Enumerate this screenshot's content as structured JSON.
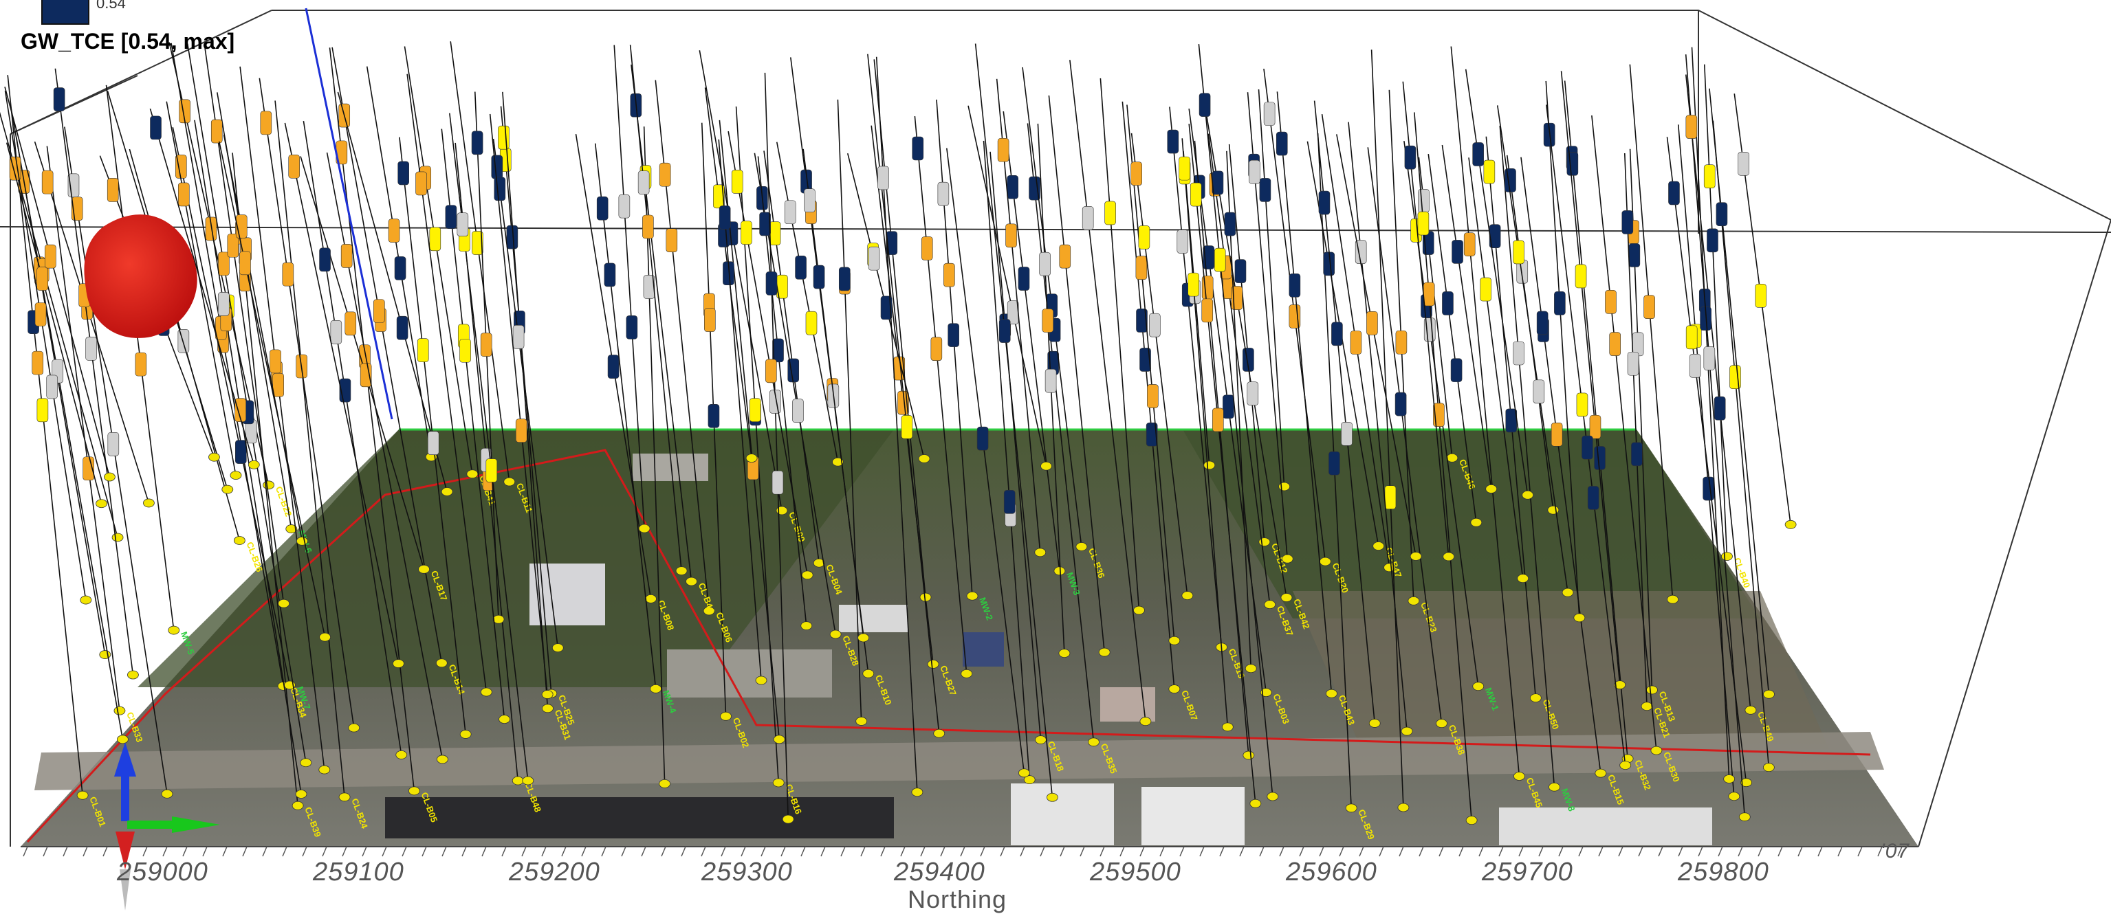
{
  "legend": {
    "title": "GW_TCE [0.54, max]",
    "swatch_value": "0.54",
    "swatch_color": "#0d2a5e"
  },
  "axis": {
    "title": "Northing",
    "ticks": [
      "259000",
      "259100",
      "259200",
      "259300",
      "259400",
      "259500",
      "259600",
      "259700",
      "259800"
    ],
    "truncated_end_label": "'07"
  },
  "colors": {
    "plume": "#d40f0f",
    "sample_high": "#f5a623",
    "sample_mid": "#fff200",
    "sample_low": "#0d2a5e",
    "sample_nd": "#d0d0d0",
    "well_marker": "#f2e400",
    "site_boundary": "#d31b1b",
    "ground_edge": "#2ecc40"
  },
  "well_labels": [
    "CL-B01",
    "CL-B02",
    "CL-B03",
    "CL-B04",
    "CL-B05",
    "CL-B06",
    "CL-B07",
    "CL-B08",
    "CL-B09",
    "CL-B10",
    "CL-B11",
    "CL-B12",
    "CL-B13",
    "CL-B14",
    "CL-B15",
    "CL-B16",
    "CL-B17",
    "CL-B18",
    "CL-B19",
    "CL-B20",
    "CL-B21",
    "CL-B22",
    "CL-B23",
    "CL-B24",
    "CL-B25",
    "CL-B26",
    "CL-B27",
    "CL-B28",
    "CL-B29",
    "CL-B30",
    "CL-B31",
    "CL-B32",
    "CL-B33",
    "CL-B34",
    "CL-B35",
    "CL-B36",
    "CL-B37",
    "CL-B38",
    "CL-B39",
    "CL-B40",
    "CL-B41",
    "CL-B42",
    "CL-B43",
    "CL-B44",
    "CL-B45",
    "CL-B46",
    "CL-B47",
    "CL-B48",
    "CL-B49",
    "CL-B50"
  ],
  "monitoring_labels": [
    "MW-1",
    "MW-2",
    "MW-3",
    "MW-4",
    "MW-5",
    "MW-6",
    "MW-7",
    "MW-8"
  ],
  "controls": {
    "view_axis_x": "x-axis",
    "view_axis_y": "y-axis",
    "view_axis_z": "z-axis"
  }
}
